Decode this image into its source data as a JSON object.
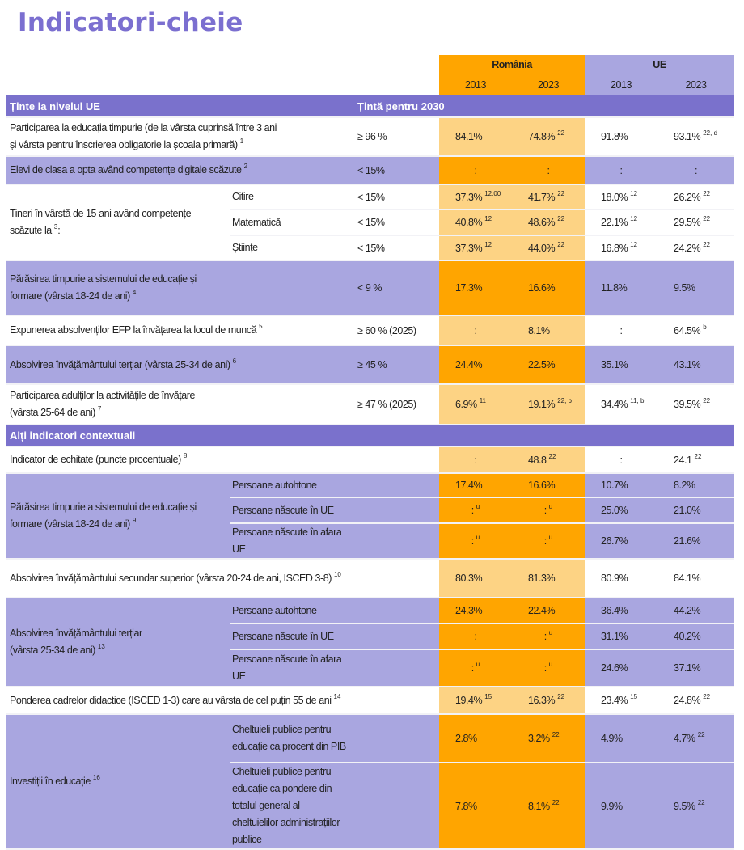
{
  "title": "Indicatori-cheie",
  "header": {
    "romania": "România",
    "ue": "UE",
    "years": [
      "2013",
      "2023",
      "2013",
      "2023"
    ]
  },
  "sections": [
    {
      "title": "Ținte la nivelul UE",
      "target_header": "Țintă pentru 2030",
      "rows": [
        {
          "label": [
            "Participarea la educația timpurie (de la vârsta cuprinsă între 3 ani",
            "și vârsta pentru înscrierea obligatorie la școala primară)"
          ],
          "sup": "1",
          "style": "w",
          "target": "≥ 96 %",
          "values": [
            {
              "v": "84.1%"
            },
            {
              "v": "74.8%",
              "s": "22"
            },
            {
              "v": "91.8%"
            },
            {
              "v": "93.1%",
              "s": "22, d"
            }
          ]
        },
        {
          "label": [
            "Elevi de clasa a opta având competențe digitale scăzute"
          ],
          "sup": "2",
          "style": "l",
          "target": "< 15%",
          "values": [
            {
              "v": ":"
            },
            {
              "v": ":"
            },
            {
              "v": ":"
            },
            {
              "v": ":"
            }
          ]
        },
        {
          "label": [
            "Tineri în vârstă de 15 ani având competențe",
            "scăzute la"
          ],
          "sup": "3",
          "after": ":",
          "style": "w",
          "subrows": [
            {
              "label": "Citire",
              "target": "< 15%",
              "values": [
                {
                  "v": "37.3%",
                  "s": "12.00"
                },
                {
                  "v": "41.7%",
                  "s": "22"
                },
                {
                  "v": "18.0%",
                  "s": "12"
                },
                {
                  "v": "26.2%",
                  "s": "22"
                }
              ]
            },
            {
              "label": "Matematică",
              "target": "< 15%",
              "values": [
                {
                  "v": "40.8%",
                  "s": "12"
                },
                {
                  "v": "48.6%",
                  "s": "22"
                },
                {
                  "v": "22.1%",
                  "s": "12"
                },
                {
                  "v": "29.5%",
                  "s": "22"
                }
              ]
            },
            {
              "label": "Științe",
              "target": "< 15%",
              "values": [
                {
                  "v": "37.3%",
                  "s": "12"
                },
                {
                  "v": "44.0%",
                  "s": "22"
                },
                {
                  "v": "16.8%",
                  "s": "12"
                },
                {
                  "v": "24.2%",
                  "s": "22"
                }
              ]
            }
          ]
        },
        {
          "label": [
            "Părăsirea timpurie a sistemului de educație și",
            "formare (vârsta 18-24 de ani)"
          ],
          "sup": "4",
          "style": "l",
          "target": "< 9 %",
          "values": [
            {
              "v": "17.3%"
            },
            {
              "v": "16.6%"
            },
            {
              "v": "11.8%"
            },
            {
              "v": "9.5%"
            }
          ]
        },
        {
          "label": [
            "Expunerea absolvenților EFP la învățarea la locul de muncă"
          ],
          "sup": "5",
          "style": "w",
          "target": "≥  60 % (2025)",
          "values": [
            {
              "v": ":"
            },
            {
              "v": "8.1%"
            },
            {
              "v": ":"
            },
            {
              "v": "64.5%",
              "s": "b"
            }
          ]
        },
        {
          "label": [
            "Absolvirea învățământului terțiar (vârsta 25-34 de ani)"
          ],
          "sup": "6",
          "style": "l",
          "target": " ≥ 45 %",
          "values": [
            {
              "v": "24.4%"
            },
            {
              "v": "22.5%"
            },
            {
              "v": "35.1%"
            },
            {
              "v": "43.1%"
            }
          ]
        },
        {
          "label": [
            "Participarea adulților la activitățile de învățare",
            "(vârsta 25-64 de ani)"
          ],
          "sup": "7",
          "style": "w",
          "target": "≥ 47 % (2025)",
          "values": [
            {
              "v": "6.9%",
              "s": "11"
            },
            {
              "v": "19.1%",
              "s": "22, b"
            },
            {
              "v": "34.4%",
              "s": "11, b"
            },
            {
              "v": "39.5%",
              "s": "22"
            }
          ]
        }
      ]
    },
    {
      "title": "Alți indicatori contextuali",
      "rows": [
        {
          "label": [
            "Indicator de echitate (puncte procentuale)"
          ],
          "sup": "8",
          "style": "w",
          "target": "",
          "values": [
            {
              "v": ":"
            },
            {
              "v": "48.8",
              "s": "22"
            },
            {
              "v": ":"
            },
            {
              "v": "24.1",
              "s": "22"
            }
          ]
        },
        {
          "label": [
            "Părăsirea timpurie a sistemului de educație și",
            "formare (vârsta 18-24 de ani)"
          ],
          "sup": "9",
          "style": "l",
          "subrows": [
            {
              "label": "Persoane autohtone",
              "target": "",
              "values": [
                {
                  "v": "17.4%"
                },
                {
                  "v": "16.6%"
                },
                {
                  "v": "10.7%"
                },
                {
                  "v": "8.2%"
                }
              ]
            },
            {
              "label": "Persoane născute în UE",
              "target": "",
              "values": [
                {
                  "v": ":",
                  "s": "u"
                },
                {
                  "v": ":",
                  "s": "u"
                },
                {
                  "v": "25.0%"
                },
                {
                  "v": "21.0%"
                }
              ]
            },
            {
              "label": "Persoane născute în afara UE",
              "target": "",
              "values": [
                {
                  "v": ":",
                  "s": "u"
                },
                {
                  "v": ":",
                  "s": "u"
                },
                {
                  "v": "26.7%"
                },
                {
                  "v": "21.6%"
                }
              ]
            }
          ]
        },
        {
          "label": [
            "Absolvirea învățământului secundar superior (vârsta 20-24 de ani, ISCED 3-8)"
          ],
          "sup": "10",
          "style": "w",
          "target": "",
          "values": [
            {
              "v": "80.3%"
            },
            {
              "v": "81.3%"
            },
            {
              "v": "80.9%"
            },
            {
              "v": "84.1%"
            }
          ]
        },
        {
          "label": [
            "Absolvirea învățământului terțiar",
            "(vârsta 25-34 de ani)"
          ],
          "sup": "13",
          "style": "l",
          "subrows": [
            {
              "label": "Persoane autohtone",
              "target": "",
              "values": [
                {
                  "v": "24.3%"
                },
                {
                  "v": "22.4%"
                },
                {
                  "v": "36.4%"
                },
                {
                  "v": "44.2%"
                }
              ]
            },
            {
              "label": "Persoane născute în UE",
              "target": "",
              "values": [
                {
                  "v": ":"
                },
                {
                  "v": ":",
                  "s": "u"
                },
                {
                  "v": "31.1%"
                },
                {
                  "v": "40.2%"
                }
              ]
            },
            {
              "label": "Persoane născute în afara UE",
              "target": "",
              "values": [
                {
                  "v": ":",
                  "s": "u"
                },
                {
                  "v": ":",
                  "s": "u"
                },
                {
                  "v": "24.6%"
                },
                {
                  "v": "37.1%"
                }
              ]
            }
          ]
        },
        {
          "label": [
            "Ponderea cadrelor didactice (ISCED 1-3) care au vârsta de cel puțin 55 de ani"
          ],
          "sup": "14",
          "style": "w",
          "target": "",
          "values": [
            {
              "v": "19.4%",
              "s": "15"
            },
            {
              "v": "16.3%",
              "s": "22"
            },
            {
              "v": "23.4%",
              "s": "15"
            },
            {
              "v": "24.8%",
              "s": "22"
            }
          ]
        },
        {
          "label": [
            "Investiții în educație"
          ],
          "sup": "16",
          "style": "l",
          "subrows": [
            {
              "label": "Cheltuieli publice pentru educație ca procent din PIB",
              "target": "",
              "values": [
                {
                  "v": "2.8%"
                },
                {
                  "v": "3.2%",
                  "s": "22"
                },
                {
                  "v": "4.9%"
                },
                {
                  "v": "4.7%",
                  "s": "22"
                }
              ]
            },
            {
              "label": "Cheltuieli publice pentru educație ca pondere din totalul general al cheltuielilor administrațiilor publice",
              "target": "",
              "values": [
                {
                  "v": "7.8%"
                },
                {
                  "v": "8.1%",
                  "s": "22"
                },
                {
                  "v": "9.9%"
                },
                {
                  "v": "9.5%",
                  "s": "22"
                }
              ]
            }
          ]
        }
      ]
    }
  ]
}
